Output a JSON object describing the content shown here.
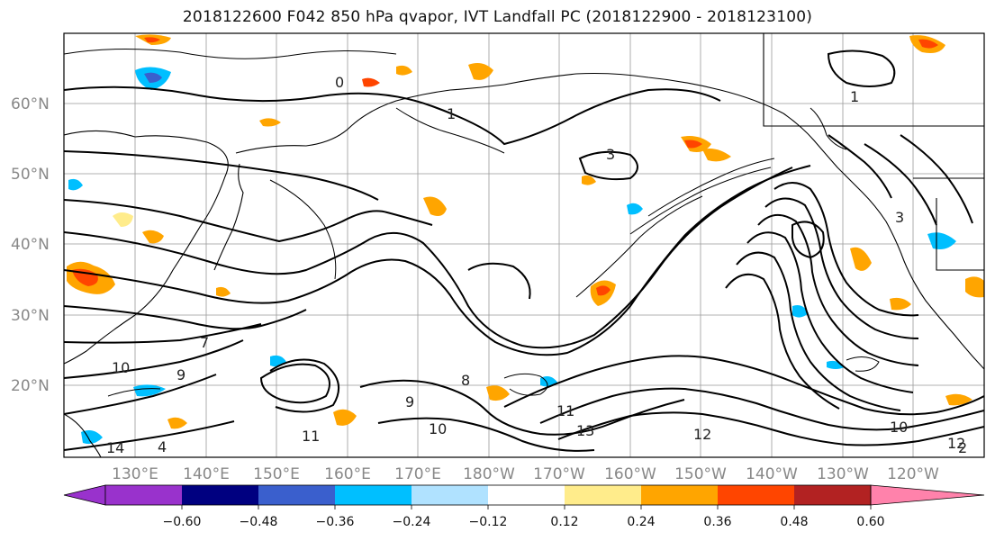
{
  "title": "2018122600 F042 850 hPa qvapor, IVT Landfall PC (2018122900 - 2018123100)",
  "lat_labels": [
    "60°N",
    "50°N",
    "40°N",
    "30°N",
    "20°N"
  ],
  "lon_labels": [
    "130°E",
    "140°E",
    "150°E",
    "160°E",
    "170°E",
    "180°W",
    "170°W",
    "160°W",
    "150°W",
    "140°W",
    "130°W",
    "120°W"
  ],
  "contour_labels": [
    "0",
    "1",
    "1",
    "3",
    "3",
    "4",
    "14",
    "11",
    "10",
    "9",
    "8",
    "12",
    "11",
    "10",
    "9",
    "13",
    "12",
    "2",
    "7",
    "10"
  ],
  "colorbar": {
    "colors": [
      "#9932cc",
      "#000080",
      "#3a5fcd",
      "#00bfff",
      "#b0e2ff",
      "#ffffff",
      "#ffec8b",
      "#ffa500",
      "#ff4500",
      "#b22222",
      "#ff82ab"
    ],
    "tick_labels": [
      "−0.60",
      "−0.48",
      "−0.36",
      "−0.24",
      "−0.12",
      "0.12",
      "0.24",
      "0.36",
      "0.48",
      "0.60"
    ]
  },
  "colors": {
    "contour": "#000000",
    "grid": "#999999",
    "coast": "#000000"
  }
}
